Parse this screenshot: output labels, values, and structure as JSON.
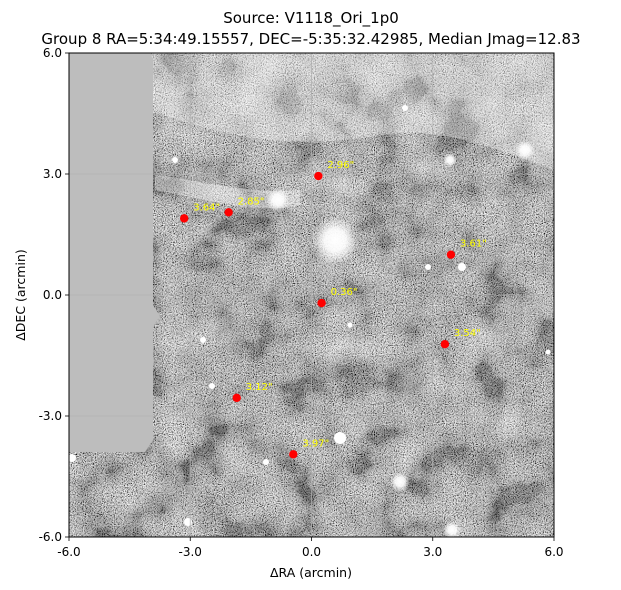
{
  "title_line1": "Source: V1118_Ori_1p0",
  "title_line2": "Group 8 RA=5:34:49.15557, DEC=-5:35:32.42985, Median Jmag=12.83",
  "chart_data": {
    "type": "scatter",
    "xlabel": "ΔRA (arcmin)",
    "ylabel": "ΔDEC (arcmin)",
    "xlim": [
      -6.0,
      6.0
    ],
    "ylim": [
      -6.0,
      6.0
    ],
    "x_ticks": [
      -6.0,
      -3.0,
      0.0,
      3.0,
      6.0
    ],
    "y_ticks": [
      -6.0,
      -3.0,
      0.0,
      3.0,
      6.0
    ],
    "x_tick_labels": [
      "-6.0",
      "-3.0",
      "0.0",
      "3.0",
      "6.0"
    ],
    "y_tick_labels": [
      "-6.0",
      "-3.0",
      "0.0",
      "3.0",
      "6.0"
    ],
    "grid": true,
    "marker_color": "#ff0000",
    "label_color": "#ffff00",
    "background": "grayscale sky image",
    "points": [
      {
        "x": 0.17,
        "y": 2.95,
        "label": "2.96\""
      },
      {
        "x": -2.05,
        "y": 2.05,
        "label": "2.85\""
      },
      {
        "x": -3.15,
        "y": 1.9,
        "label": "3.64\""
      },
      {
        "x": 3.45,
        "y": 1.0,
        "label": "3.61\""
      },
      {
        "x": 0.25,
        "y": -0.2,
        "label": "0.36\""
      },
      {
        "x": 3.3,
        "y": -1.22,
        "label": "3.54\""
      },
      {
        "x": -1.85,
        "y": -2.55,
        "label": "3.12\""
      },
      {
        "x": -0.45,
        "y": -3.95,
        "label": "3.97\""
      }
    ]
  }
}
